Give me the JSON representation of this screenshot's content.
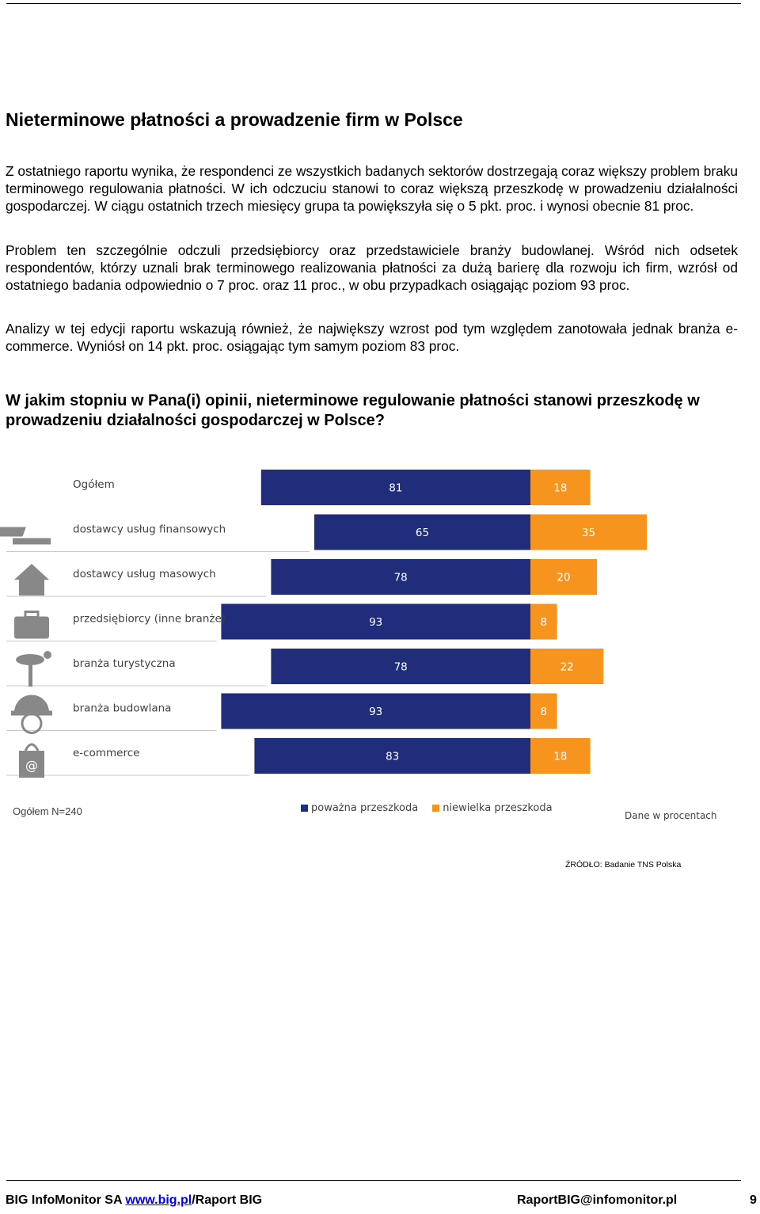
{
  "title": "Nieterminowe płatności a prowadzenie firm w Polsce",
  "paragraphs": [
    "Z ostatniego raportu wynika, że respondenci ze wszystkich badanych sektorów dostrzegają coraz większy problem braku terminowego regulowania płatności. W ich odczuciu stanowi to coraz większą przeszkodę w prowadzeniu działalności gospodarczej. W ciągu ostatnich trzech miesięcy grupa ta powiększyła się o 5 pkt. proc. i wynosi obecnie 81 proc.",
    "Problem ten szczególnie odczuli przedsiębiorcy oraz przedstawiciele branży budowlanej. Wśród nich odsetek respondentów, którzy uznali brak terminowego realizowania płatności za dużą barierę dla rozwoju ich firm, wzrósł od ostatniego badania odpowiednio o 7 proc. oraz 11 proc., w obu przypadkach osiągając poziom 93 proc.",
    "Analizy w tej edycji raportu wskazują również, że największy wzrost pod tym względem zanotowała jednak branża e-commerce. Wyniósł on 14 pkt. proc. osiągając tym samym poziom 83 proc."
  ],
  "question": "W jakim stopniu w Pana(i) opinii, nieterminowe regulowanie płatności stanowi przeszkodę w prowadzeniu działalności gospodarczej w Polsce?",
  "chart_data": {
    "type": "bar",
    "orientation": "horizontal-stacked-diverging",
    "categories": [
      "Ogółem",
      "dostawcy usług finansowych",
      "dostawcy usług masowych",
      "przedsiębiorcy (inne branże)",
      "branża turystyczna",
      "branża budowlana",
      "e-commerce"
    ],
    "category_icons": [
      "",
      "money-icon",
      "house-icon",
      "briefcase-icon",
      "palm-tree-icon",
      "helmet-icon",
      "shopping-bag-icon"
    ],
    "series": [
      {
        "name": "poważna przeszkoda",
        "color": "#1f2d7b",
        "values": [
          81,
          65,
          78,
          93,
          78,
          93,
          83
        ]
      },
      {
        "name": "niewielka przeszkoda",
        "color": "#f7941d",
        "values": [
          18,
          35,
          20,
          8,
          22,
          8,
          18
        ]
      }
    ],
    "legend": "bottom-center",
    "sample_note": "Ogółem N=240",
    "unit_note": "Dane w procentach"
  },
  "source": "ŹRÓDŁO: Badanie TNS Polska",
  "footer": {
    "company": "BIG InfoMonitor SA ",
    "link": "www.big.pl",
    "suffix": "/Raport BIG",
    "email": "RaportBIG@infomonitor.pl",
    "page": "9"
  }
}
